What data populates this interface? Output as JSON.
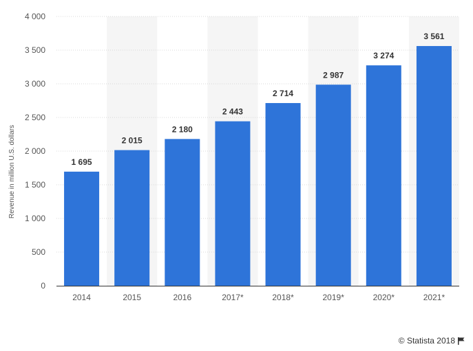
{
  "chart_data": {
    "type": "bar",
    "categories": [
      "2014",
      "2015",
      "2016",
      "2017*",
      "2018*",
      "2019*",
      "2020*",
      "2021*"
    ],
    "values": [
      1695,
      2015,
      2180,
      2443,
      2714,
      2987,
      3274,
      3561
    ],
    "value_labels": [
      "1 695",
      "2 015",
      "2 180",
      "2 443",
      "2 714",
      "2 987",
      "3 274",
      "3 561"
    ],
    "yticks": [
      0,
      500,
      1000,
      1500,
      2000,
      2500,
      3000,
      3500,
      4000
    ],
    "ytick_labels": [
      "0",
      "500",
      "1 000",
      "1 500",
      "2 000",
      "2 500",
      "3 000",
      "3 500",
      "4 000"
    ],
    "ylim": [
      0,
      4000
    ],
    "ylabel": "Revenue in million U.S. dollars",
    "xlabel": "",
    "title": "",
    "grid": true,
    "bar_color": "#2e74d9",
    "alt_band_color": "#f5f5f5"
  },
  "credit": {
    "text": "© Statista 2018",
    "icon": "flag-icon"
  }
}
